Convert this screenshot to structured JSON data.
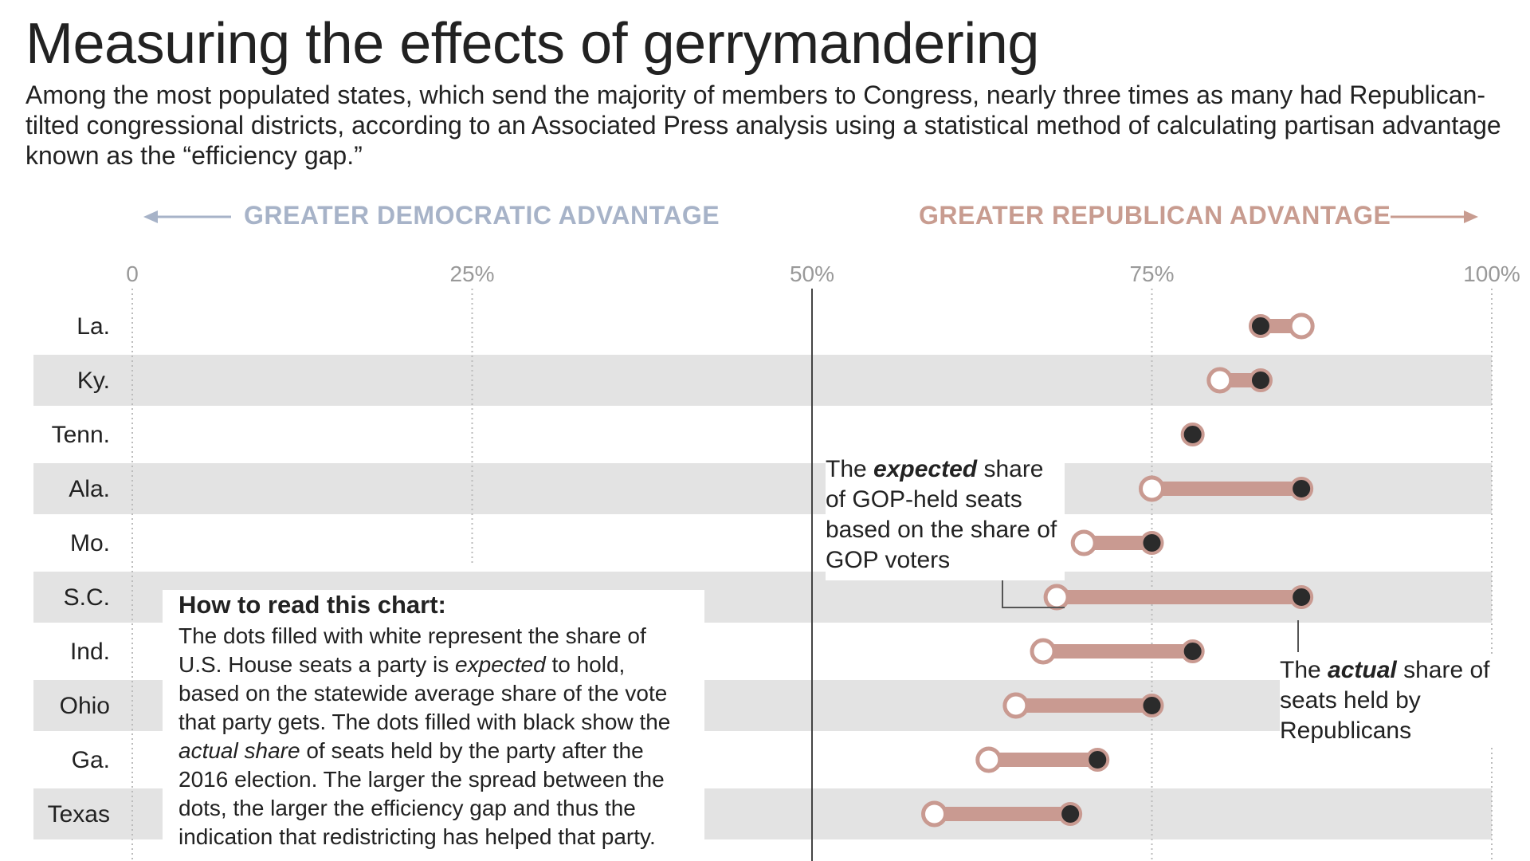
{
  "header": {
    "title": "Measuring the effects of gerrymandering",
    "subtitle": "Among the most populated states, which send the majority of members to Congress, nearly three times as many had Republican-tilted congressional districts, according to an Associated Press analysis using a statistical method of calculating partisan advantage known as the “efficiency gap.”"
  },
  "directions": {
    "democratic": "GREATER DEMOCRATIC ADVANTAGE",
    "republican": "GREATER REPUBLICAN ADVANTAGE"
  },
  "annotations": {
    "expected": {
      "pre": "The ",
      "em": "expected",
      "post": " share of GOP-held seats based on the share of GOP voters"
    },
    "actual": {
      "pre": "The ",
      "em": "actual",
      "post": " share of seats held by Republicans"
    }
  },
  "how_to": {
    "title": "How to read this chart:",
    "p1": "The dots filled with white represent the share of U.S. House seats a party is ",
    "em1": "expected",
    "p2": " to hold, based on the statewide average share of the vote that party gets. The dots filled with black show the ",
    "em2": "actual share",
    "p3": " of seats held by the party after the 2016 election. The larger the spread between the dots, the larger the efficiency gap and thus the indication that redistricting has helped that party."
  },
  "colors": {
    "background": "#ffffff",
    "band": "#e3e3e3",
    "connector": "#c99a91",
    "filled_dot": "#2b2b2b",
    "open_dot_stroke": "#c99a91",
    "democratic": "#a7b3c8",
    "republican": "#c89c90",
    "tick": "#999999"
  },
  "chart_data": {
    "type": "dumbbell",
    "title": "Measuring the effects of gerrymandering",
    "xlim": [
      0,
      100
    ],
    "x_ticks": [
      0,
      25,
      50,
      75,
      100
    ],
    "x_tick_labels": [
      "0",
      "25%",
      "50%",
      "75%",
      "100%"
    ],
    "reference_line": 50,
    "series": [
      {
        "name": "Expected share of GOP-held seats",
        "marker": "open"
      },
      {
        "name": "Actual share of seats held by Republicans",
        "marker": "filled"
      }
    ],
    "states": [
      {
        "name": "La.",
        "expected": 86,
        "actual": 83,
        "band": false
      },
      {
        "name": "Ky.",
        "expected": 80,
        "actual": 83,
        "band": true
      },
      {
        "name": "Tenn.",
        "expected": null,
        "actual": 78,
        "band": false
      },
      {
        "name": "Ala.",
        "expected": 75,
        "actual": 86,
        "band": true
      },
      {
        "name": "Mo.",
        "expected": 70,
        "actual": 75,
        "band": false
      },
      {
        "name": "S.C.",
        "expected": 68,
        "actual": 86,
        "band": true
      },
      {
        "name": "Ind.",
        "expected": 67,
        "actual": 78,
        "band": false
      },
      {
        "name": "Ohio",
        "expected": 65,
        "actual": 75,
        "band": true
      },
      {
        "name": "Ga.",
        "expected": 63,
        "actual": 71,
        "band": false
      },
      {
        "name": "Texas",
        "expected": 59,
        "actual": 69,
        "band": true
      }
    ]
  }
}
